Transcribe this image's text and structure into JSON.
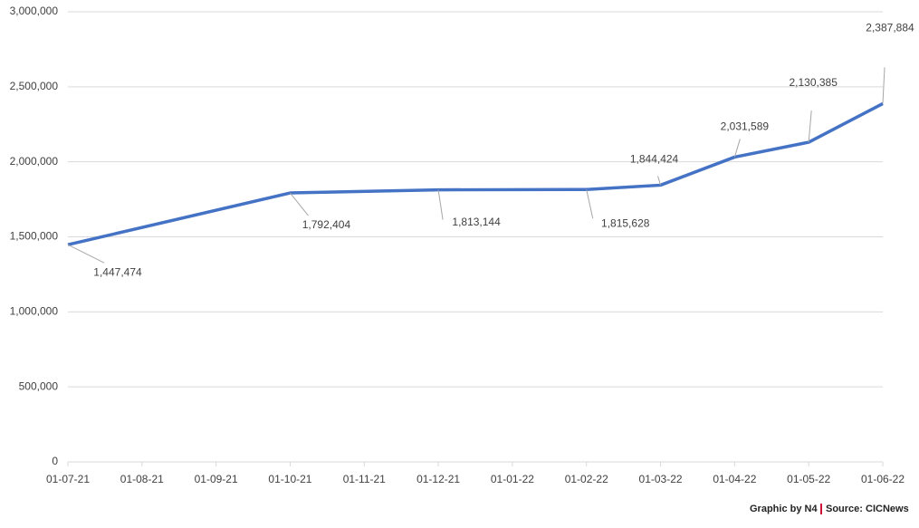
{
  "chart_data": {
    "type": "line",
    "x": [
      "01-07-21",
      "01-10-21",
      "01-12-21",
      "01-02-22",
      "01-03-22",
      "01-04-22",
      "01-05-22",
      "01-06-22"
    ],
    "values": [
      1447474,
      1792404,
      1813144,
      1815628,
      1844424,
      2031589,
      2130385,
      2387884
    ],
    "value_labels": [
      "1,447,474",
      "1,792,404",
      "1,813,144",
      "1,815,628",
      "1,844,424",
      "2,031,589",
      "2,130,385",
      "2,387,884"
    ],
    "color": "#4472c4",
    "xticks": [
      "01-07-21",
      "01-08-21",
      "01-09-21",
      "01-10-21",
      "01-11-21",
      "01-12-21",
      "01-01-22",
      "01-02-22",
      "01-03-22",
      "01-04-22",
      "01-05-22",
      "01-06-22"
    ],
    "ylim": [
      0,
      3000000
    ],
    "yticks": [
      0,
      {
        "value": 500000,
        "label": "500,000"
      },
      {
        "value": 1000000,
        "label": "1,000,000"
      },
      {
        "value": 1500000,
        "label": "1,500,000"
      },
      {
        "value": 2000000,
        "label": "2,000,000"
      },
      {
        "value": 2500000,
        "label": "2,500,000"
      },
      {
        "value": 3000000,
        "label": "3,000,000"
      }
    ],
    "grid": true,
    "credit": "Graphic by N4",
    "source": "Source: CICNews"
  }
}
